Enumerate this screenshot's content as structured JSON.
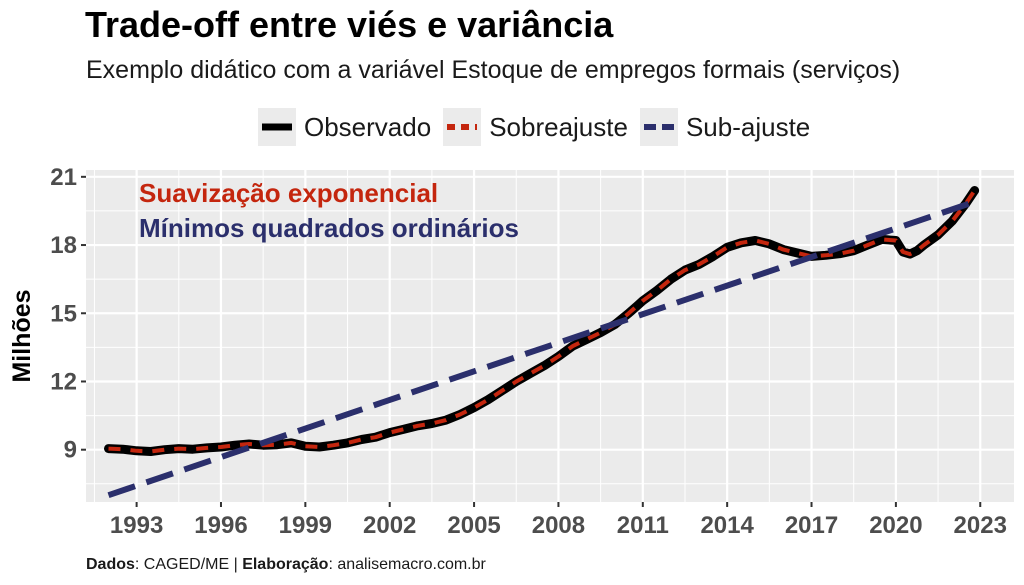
{
  "title": "Trade-off entre viés e variância",
  "subtitle": "Exemplo didático com a variável Estoque de empregos formais (serviços)",
  "caption": {
    "dados_label": "Dados",
    "dados_value": ": CAGED/ME | ",
    "elab_label": "Elaboração",
    "elab_value": ": analisemacro.com.br"
  },
  "colors": {
    "observado": "#000000",
    "sobreajuste": "#c4260e",
    "subajuste": "#2b2f6c",
    "panel": "#ebebeb",
    "grid": "#ffffff"
  },
  "chart_data": {
    "type": "line",
    "ylabel": "Milhões",
    "xlabel": "",
    "xlim": [
      1991.2,
      2024.2
    ],
    "ylim": [
      6.7,
      21.3
    ],
    "x_ticks": [
      1993,
      1996,
      1999,
      2002,
      2005,
      2008,
      2011,
      2014,
      2017,
      2020,
      2023
    ],
    "x_tick_labels": [
      "1993",
      "1996",
      "1999",
      "2002",
      "2005",
      "2008",
      "2011",
      "2014",
      "2017",
      "2020",
      "2023"
    ],
    "y_ticks": [
      9,
      12,
      15,
      18,
      21
    ],
    "y_tick_labels": [
      "9",
      "12",
      "15",
      "18",
      "21"
    ],
    "grid": true,
    "legend_position": "top",
    "annotations": [
      {
        "text": "Suavização exponencial",
        "color": "#c4260e"
      },
      {
        "text": "Mínimos quadrados ordinários",
        "color": "#2b2f6c"
      }
    ],
    "series": [
      {
        "name": "Observado",
        "style": "solid",
        "x": [
          1992.0,
          1992.5,
          1993.0,
          1993.5,
          1994.0,
          1994.5,
          1995.0,
          1995.5,
          1996.0,
          1996.5,
          1997.0,
          1997.5,
          1998.0,
          1998.5,
          1999.0,
          1999.5,
          2000.0,
          2000.5,
          2001.0,
          2001.5,
          2002.0,
          2002.5,
          2003.0,
          2003.5,
          2004.0,
          2004.5,
          2005.0,
          2005.5,
          2006.0,
          2006.5,
          2007.0,
          2007.5,
          2008.0,
          2008.5,
          2009.0,
          2009.5,
          2010.0,
          2010.5,
          2011.0,
          2011.5,
          2012.0,
          2012.5,
          2013.0,
          2013.5,
          2014.0,
          2014.5,
          2015.0,
          2015.5,
          2016.0,
          2016.5,
          2017.0,
          2017.5,
          2018.0,
          2018.5,
          2019.0,
          2019.5,
          2020.0,
          2020.25,
          2020.5,
          2020.75,
          2021.0,
          2021.5,
          2022.0,
          2022.5,
          2022.8
        ],
        "y": [
          9.05,
          9.02,
          8.95,
          8.92,
          9.0,
          9.05,
          9.02,
          9.08,
          9.12,
          9.2,
          9.25,
          9.2,
          9.22,
          9.3,
          9.15,
          9.12,
          9.2,
          9.3,
          9.45,
          9.55,
          9.75,
          9.9,
          10.05,
          10.15,
          10.3,
          10.55,
          10.85,
          11.2,
          11.6,
          12.0,
          12.35,
          12.7,
          13.1,
          13.55,
          13.85,
          14.15,
          14.5,
          15.0,
          15.55,
          16.0,
          16.5,
          16.9,
          17.15,
          17.5,
          17.9,
          18.1,
          18.2,
          18.05,
          17.8,
          17.65,
          17.5,
          17.55,
          17.62,
          17.75,
          18.0,
          18.25,
          18.2,
          17.7,
          17.6,
          17.75,
          18.0,
          18.45,
          19.05,
          19.85,
          20.4
        ]
      },
      {
        "name": "Sobreajuste",
        "style": "dashed",
        "x": [
          1992.0,
          1992.5,
          1993.0,
          1993.5,
          1994.0,
          1994.5,
          1995.0,
          1995.5,
          1996.0,
          1996.5,
          1997.0,
          1997.5,
          1998.0,
          1998.5,
          1999.0,
          1999.5,
          2000.0,
          2000.5,
          2001.0,
          2001.5,
          2002.0,
          2002.5,
          2003.0,
          2003.5,
          2004.0,
          2004.5,
          2005.0,
          2005.5,
          2006.0,
          2006.5,
          2007.0,
          2007.5,
          2008.0,
          2008.5,
          2009.0,
          2009.5,
          2010.0,
          2010.5,
          2011.0,
          2011.5,
          2012.0,
          2012.5,
          2013.0,
          2013.5,
          2014.0,
          2014.5,
          2015.0,
          2015.5,
          2016.0,
          2016.5,
          2017.0,
          2017.5,
          2018.0,
          2018.5,
          2019.0,
          2019.5,
          2020.0,
          2020.25,
          2020.5,
          2020.75,
          2021.0,
          2021.5,
          2022.0,
          2022.5,
          2022.8
        ],
        "y": [
          9.05,
          9.02,
          8.95,
          8.92,
          9.0,
          9.05,
          9.02,
          9.08,
          9.12,
          9.2,
          9.25,
          9.2,
          9.22,
          9.3,
          9.15,
          9.12,
          9.2,
          9.3,
          9.45,
          9.55,
          9.75,
          9.9,
          10.05,
          10.15,
          10.3,
          10.55,
          10.85,
          11.2,
          11.6,
          12.0,
          12.35,
          12.7,
          13.1,
          13.55,
          13.85,
          14.15,
          14.5,
          15.0,
          15.55,
          16.0,
          16.5,
          16.9,
          17.15,
          17.5,
          17.9,
          18.1,
          18.2,
          18.05,
          17.8,
          17.65,
          17.5,
          17.55,
          17.62,
          17.75,
          18.0,
          18.25,
          18.2,
          17.7,
          17.6,
          17.75,
          18.0,
          18.45,
          19.05,
          19.85,
          20.4
        ]
      },
      {
        "name": "Sub-ajuste",
        "style": "dashed",
        "x": [
          1992.0,
          2022.8
        ],
        "y": [
          7.0,
          19.9
        ]
      }
    ]
  }
}
